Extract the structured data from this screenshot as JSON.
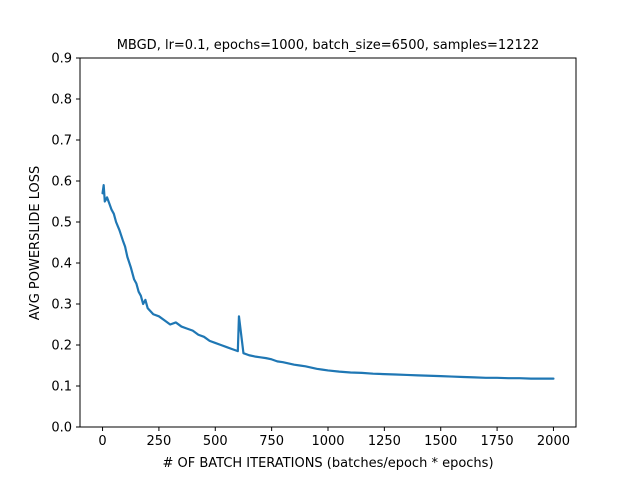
{
  "chart_data": {
    "type": "line",
    "title": "MBGD, lr=0.1, epochs=1000, batch_size=6500, samples=12122",
    "xlabel": "# OF BATCH ITERATIONS (batches/epoch * epochs)",
    "ylabel": "AVG POWERSLIDE LOSS",
    "xlim": [
      -100,
      2100
    ],
    "ylim": [
      0.0,
      0.9
    ],
    "xticks": [
      0,
      250,
      500,
      750,
      1000,
      1250,
      1500,
      1750,
      2000
    ],
    "xtick_labels": [
      "0",
      "250",
      "500",
      "750",
      "1000",
      "1250",
      "1500",
      "1750",
      "2000"
    ],
    "yticks": [
      0.0,
      0.1,
      0.2,
      0.3,
      0.4,
      0.5,
      0.6,
      0.7,
      0.8,
      0.9
    ],
    "ytick_labels": [
      "0.0",
      "0.1",
      "0.2",
      "0.3",
      "0.4",
      "0.5",
      "0.6",
      "0.7",
      "0.8",
      "0.9"
    ],
    "grid": false,
    "series": [
      {
        "color": "#1f77b4",
        "x": [
          0,
          5,
          10,
          20,
          30,
          40,
          50,
          60,
          75,
          90,
          100,
          110,
          125,
          140,
          150,
          160,
          170,
          180,
          190,
          200,
          225,
          250,
          275,
          300,
          325,
          350,
          375,
          400,
          425,
          450,
          475,
          500,
          525,
          550,
          575,
          600,
          605,
          625,
          650,
          675,
          700,
          725,
          750,
          775,
          800,
          825,
          850,
          875,
          900,
          925,
          950,
          975,
          1000,
          1050,
          1100,
          1150,
          1200,
          1250,
          1300,
          1350,
          1400,
          1450,
          1500,
          1550,
          1600,
          1650,
          1700,
          1750,
          1800,
          1850,
          1900,
          1950,
          2000
        ],
        "y": [
          0.57,
          0.59,
          0.55,
          0.56,
          0.545,
          0.53,
          0.52,
          0.5,
          0.48,
          0.455,
          0.44,
          0.415,
          0.39,
          0.36,
          0.35,
          0.33,
          0.32,
          0.3,
          0.31,
          0.29,
          0.275,
          0.27,
          0.26,
          0.25,
          0.255,
          0.245,
          0.24,
          0.235,
          0.225,
          0.22,
          0.21,
          0.205,
          0.2,
          0.195,
          0.19,
          0.185,
          0.27,
          0.18,
          0.175,
          0.172,
          0.17,
          0.168,
          0.165,
          0.16,
          0.158,
          0.155,
          0.152,
          0.15,
          0.148,
          0.145,
          0.142,
          0.14,
          0.138,
          0.135,
          0.133,
          0.132,
          0.13,
          0.129,
          0.128,
          0.127,
          0.126,
          0.125,
          0.124,
          0.123,
          0.122,
          0.121,
          0.12,
          0.12,
          0.119,
          0.119,
          0.118,
          0.118,
          0.118
        ]
      }
    ]
  }
}
